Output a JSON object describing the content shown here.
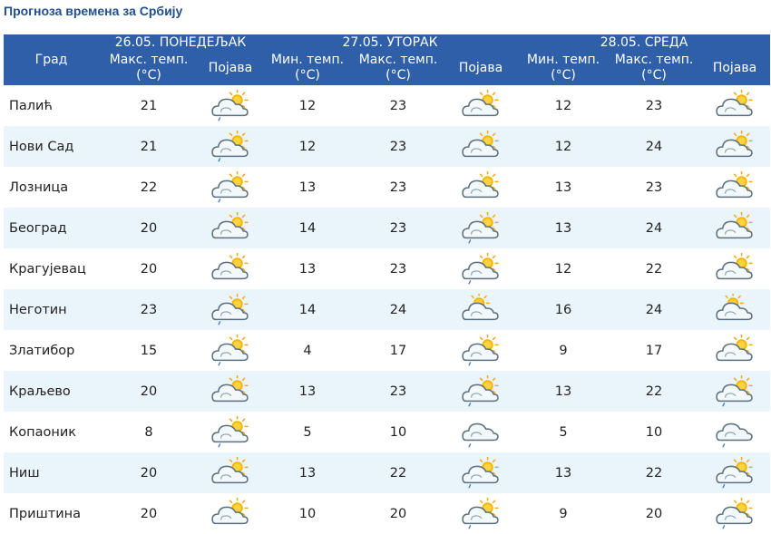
{
  "title": "Прогноза времена за Србију",
  "header": {
    "city": "Град",
    "days": [
      {
        "date": "26.05. ПОНЕДЕЉАК",
        "max": "Макс. темп.",
        "unit": "(°C)",
        "phen": "Појава"
      },
      {
        "date": "27.05. УТОРАК",
        "min": "Мин. темп.",
        "max": "Макс. темп.",
        "unit": "(°C)",
        "phen": "Појава"
      },
      {
        "date": "28.05. СРЕДА",
        "min": "Мин. темп.",
        "max": "Макс. темп.",
        "unit": "(°C)",
        "phen": "Појава"
      }
    ]
  },
  "rows": [
    {
      "city": "Палић",
      "d1max": "21",
      "d1icon": "sun-cloud-rain-icon",
      "d2min": "12",
      "d2max": "23",
      "d2icon": "sun-cloud-icon",
      "d3min": "12",
      "d3max": "23",
      "d3icon": "sun-cloud-icon"
    },
    {
      "city": "Нови Сад",
      "d1max": "21",
      "d1icon": "sun-cloud-rain-icon",
      "d2min": "12",
      "d2max": "23",
      "d2icon": "sun-cloud-icon",
      "d3min": "12",
      "d3max": "24",
      "d3icon": "sun-cloud-icon"
    },
    {
      "city": "Лозница",
      "d1max": "22",
      "d1icon": "sun-cloud-rain-icon",
      "d2min": "13",
      "d2max": "23",
      "d2icon": "sun-cloud-icon",
      "d3min": "13",
      "d3max": "23",
      "d3icon": "sun-cloud-icon"
    },
    {
      "city": "Београд",
      "d1max": "20",
      "d1icon": "sun-cloud-icon",
      "d2min": "14",
      "d2max": "23",
      "d2icon": "sun-cloud-rain-icon",
      "d3min": "13",
      "d3max": "24",
      "d3icon": "sun-cloud-icon"
    },
    {
      "city": "Крагујевац",
      "d1max": "20",
      "d1icon": "sun-cloud-icon",
      "d2min": "13",
      "d2max": "23",
      "d2icon": "sun-cloud-rain-icon",
      "d3min": "12",
      "d3max": "22",
      "d3icon": "sun-cloud-icon"
    },
    {
      "city": "Неготин",
      "d1max": "23",
      "d1icon": "sun-cloud-rain-icon",
      "d2min": "14",
      "d2max": "24",
      "d2icon": "sun-behind-cloud-icon",
      "d3min": "16",
      "d3max": "24",
      "d3icon": "sun-behind-cloud-icon"
    },
    {
      "city": "Златибор",
      "d1max": "15",
      "d1icon": "sun-cloud-rain-icon",
      "d2min": "4",
      "d2max": "17",
      "d2icon": "sun-cloud-rain-icon",
      "d3min": "9",
      "d3max": "17",
      "d3icon": "sun-cloud-icon"
    },
    {
      "city": "Краљево",
      "d1max": "20",
      "d1icon": "sun-cloud-icon",
      "d2min": "13",
      "d2max": "23",
      "d2icon": "sun-cloud-rain-icon",
      "d3min": "13",
      "d3max": "22",
      "d3icon": "sun-cloud-rain-icon"
    },
    {
      "city": "Копаоник",
      "d1max": "8",
      "d1icon": "sun-cloud-rain-icon",
      "d2min": "5",
      "d2max": "10",
      "d2icon": "cloud-rain-icon",
      "d3min": "5",
      "d3max": "10",
      "d3icon": "cloud-rain-icon"
    },
    {
      "city": "Ниш",
      "d1max": "20",
      "d1icon": "sun-cloud-icon",
      "d2min": "13",
      "d2max": "22",
      "d2icon": "sun-cloud-rain-icon",
      "d3min": "13",
      "d3max": "22",
      "d3icon": "sun-cloud-rain-icon"
    },
    {
      "city": "Приштина",
      "d1max": "20",
      "d1icon": "sun-cloud-icon",
      "d2min": "10",
      "d2max": "20",
      "d2icon": "sun-cloud-rain-icon",
      "d3min": "9",
      "d3max": "20",
      "d3icon": "sun-cloud-rain-icon"
    }
  ]
}
